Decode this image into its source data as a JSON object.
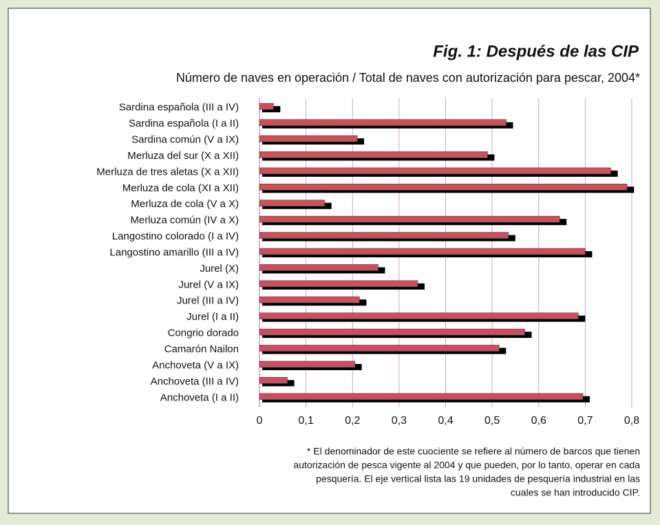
{
  "chart_data": {
    "type": "barh",
    "title": "Fig. 1: Después de las CIP",
    "subtitle": "Número de naves en operación / Total de naves con autorización para pescar, 2004*",
    "categories": [
      "Sardina española (III a IV)",
      "Sardina española (I a II)",
      "Sardina común (V a IX)",
      "Merluza del sur (X a XII)",
      "Merluza de tres aletas (X a XII)",
      "Merluza de cola (XI a XII)",
      "Merluza de cola (V a X)",
      "Merluza común (IV a X)",
      "Langostino colorado (I a IV)",
      "Langostino amarillo (III a IV)",
      "Jurel (X)",
      "Jurel (V a IX)",
      "Jurel (III a IV)",
      "Jurel (I a II)",
      "Congrio dorado",
      "Camarón Nailon",
      "Anchoveta (V a IX)",
      "Anchoveta (III a IV)",
      "Anchoveta (I a II)"
    ],
    "values": [
      0.03,
      0.53,
      0.21,
      0.49,
      0.755,
      0.79,
      0.14,
      0.645,
      0.535,
      0.7,
      0.255,
      0.34,
      0.215,
      0.685,
      0.57,
      0.515,
      0.205,
      0.06,
      0.695
    ],
    "color": "#c8505f",
    "shadow_color": "#000000",
    "xlim": [
      0,
      0.8
    ],
    "xticks": [
      0,
      {
        "value": 0.1,
        "label": "0,1"
      },
      {
        "value": 0.2,
        "label": "0,2"
      },
      {
        "value": 0.3,
        "label": "0,3"
      },
      {
        "value": 0.4,
        "label": "0,4"
      },
      {
        "value": 0.5,
        "label": "0,5"
      },
      {
        "value": 0.6,
        "label": "0,6"
      },
      {
        "value": 0.7,
        "label": "0,7"
      },
      {
        "value": 0.8,
        "label": "0,8"
      }
    ],
    "grid": true,
    "grid_color": "#c9a3cf",
    "footnote": [
      "* El denominador de este cuociente se refiere al número de barcos que tienen",
      "autorización de pesca vigente al 2004 y que pueden, por lo tanto, operar en cada",
      "pesquería. El eje vertical lista las 19 unidades de pesquería industrial en las",
      "cuales se han introducido CIP."
    ]
  }
}
